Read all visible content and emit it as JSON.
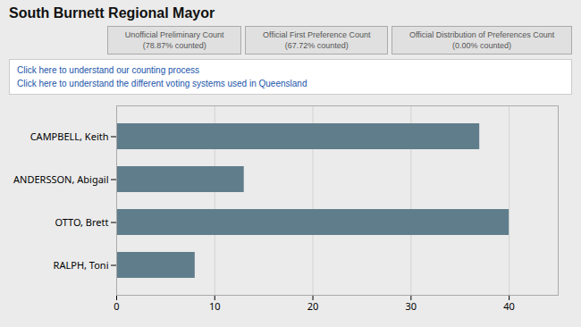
{
  "chart_data": {
    "type": "bar",
    "title": "South Burnett Regional Mayor",
    "orientation": "horizontal",
    "categories": [
      "RALPH, Toni",
      "OTTO, Brett",
      "ANDERSSON, Abigail",
      "CAMPBELL, Keith"
    ],
    "values": [
      8,
      40,
      13,
      37
    ],
    "color": "#607d8b",
    "xlim": [
      0,
      45
    ],
    "xticks": [
      0,
      10,
      20,
      30,
      40
    ],
    "grid": true,
    "annotations": [
      [
        "Unofficial Preliminary Count\n(78.87% counted)",
        "Official First Preference Count\n(67.72% counted)",
        "Official Distribution of Preferences Count\n(0.00% counted)"
      ],
      [
        "Click here to understand our counting process",
        "Click here to understand the different voting systems used in Queensland"
      ]
    ]
  }
}
